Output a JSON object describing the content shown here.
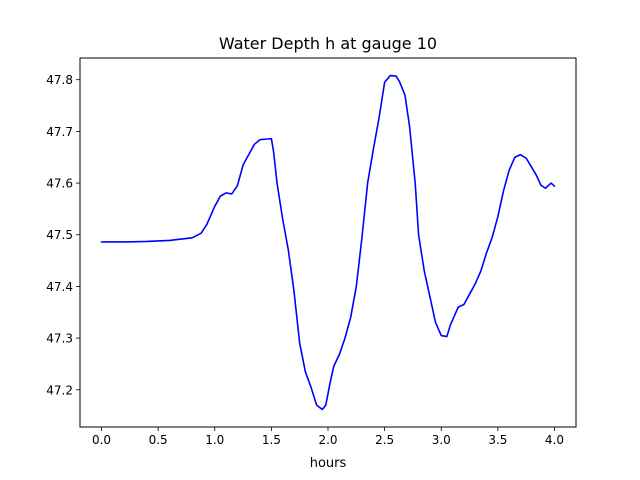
{
  "chart_data": {
    "type": "line",
    "title": "Water Depth h at gauge 10",
    "xlabel": "hours",
    "ylabel": "",
    "xlim": [
      -0.19,
      4.19
    ],
    "ylim": [
      47.128,
      47.842
    ],
    "x_ticks": [
      0.0,
      0.5,
      1.0,
      1.5,
      2.0,
      2.5,
      3.0,
      3.5,
      4.0
    ],
    "x_tick_labels": [
      "0.0",
      "0.5",
      "1.0",
      "1.5",
      "2.0",
      "2.5",
      "3.0",
      "3.5",
      "4.0"
    ],
    "y_ticks": [
      47.2,
      47.3,
      47.4,
      47.5,
      47.6,
      47.7,
      47.8
    ],
    "y_tick_labels": [
      "47.2",
      "47.3",
      "47.4",
      "47.5",
      "47.6",
      "47.7",
      "47.8"
    ],
    "grid": false,
    "series": [
      {
        "color": "#0000ff",
        "x": [
          0.0,
          0.2,
          0.4,
          0.6,
          0.8,
          0.88,
          0.93,
          1.0,
          1.05,
          1.1,
          1.15,
          1.2,
          1.25,
          1.3,
          1.35,
          1.4,
          1.45,
          1.5,
          1.52,
          1.55,
          1.6,
          1.65,
          1.7,
          1.75,
          1.8,
          1.85,
          1.9,
          1.95,
          1.98,
          2.02,
          2.05,
          2.1,
          2.15,
          2.2,
          2.25,
          2.3,
          2.35,
          2.4,
          2.45,
          2.5,
          2.55,
          2.6,
          2.63,
          2.68,
          2.72,
          2.77,
          2.8,
          2.85,
          2.9,
          2.95,
          3.0,
          3.05,
          3.08,
          3.12,
          3.15,
          3.2,
          3.25,
          3.3,
          3.35,
          3.4,
          3.45,
          3.5,
          3.55,
          3.6,
          3.65,
          3.7,
          3.75,
          3.8,
          3.84,
          3.88,
          3.92,
          3.97,
          4.0
        ],
        "y": [
          47.486,
          47.486,
          47.487,
          47.489,
          47.494,
          47.503,
          47.52,
          47.555,
          47.575,
          47.581,
          47.579,
          47.595,
          47.635,
          47.655,
          47.675,
          47.684,
          47.685,
          47.686,
          47.66,
          47.6,
          47.53,
          47.47,
          47.39,
          47.29,
          47.235,
          47.205,
          47.17,
          47.162,
          47.17,
          47.215,
          47.245,
          47.268,
          47.3,
          47.34,
          47.4,
          47.495,
          47.6,
          47.665,
          47.725,
          47.795,
          47.808,
          47.807,
          47.797,
          47.77,
          47.71,
          47.6,
          47.5,
          47.43,
          47.38,
          47.33,
          47.305,
          47.303,
          47.325,
          47.345,
          47.36,
          47.365,
          47.385,
          47.405,
          47.43,
          47.465,
          47.495,
          47.535,
          47.585,
          47.625,
          47.65,
          47.655,
          47.648,
          47.63,
          47.615,
          47.596,
          47.59,
          47.6,
          47.594
        ]
      }
    ]
  }
}
